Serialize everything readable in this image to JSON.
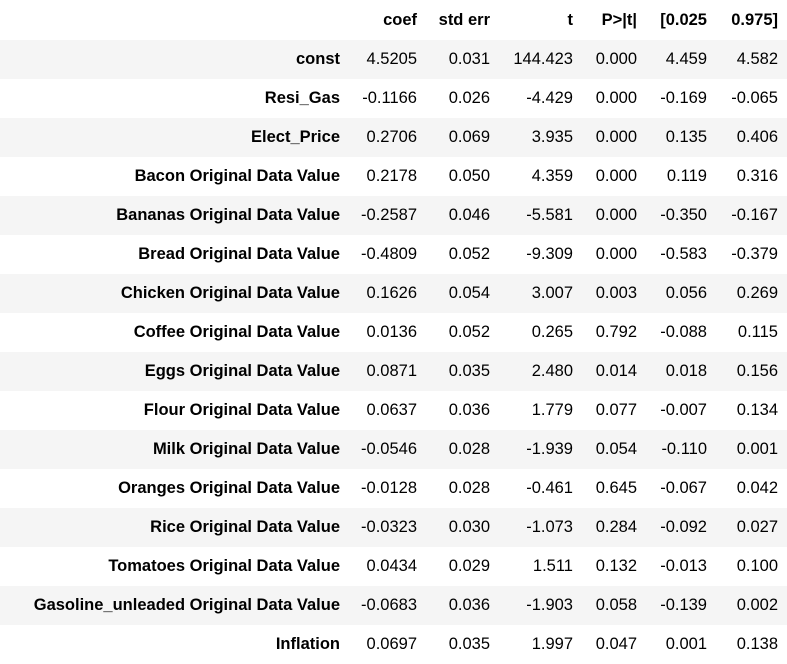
{
  "columns": [
    "",
    "coef",
    "std err",
    "t",
    "P>|t|",
    "[0.025",
    "0.975]"
  ],
  "rows": [
    {
      "name": "const",
      "values": [
        "4.5205",
        "0.031",
        "144.423",
        "0.000",
        "4.459",
        "4.582"
      ]
    },
    {
      "name": "Resi_Gas",
      "values": [
        "-0.1166",
        "0.026",
        "-4.429",
        "0.000",
        "-0.169",
        "-0.065"
      ]
    },
    {
      "name": "Elect_Price",
      "values": [
        "0.2706",
        "0.069",
        "3.935",
        "0.000",
        "0.135",
        "0.406"
      ]
    },
    {
      "name": "Bacon Original Data Value",
      "values": [
        "0.2178",
        "0.050",
        "4.359",
        "0.000",
        "0.119",
        "0.316"
      ]
    },
    {
      "name": "Bananas Original Data Value",
      "values": [
        "-0.2587",
        "0.046",
        "-5.581",
        "0.000",
        "-0.350",
        "-0.167"
      ]
    },
    {
      "name": "Bread Original Data Value",
      "values": [
        "-0.4809",
        "0.052",
        "-9.309",
        "0.000",
        "-0.583",
        "-0.379"
      ]
    },
    {
      "name": "Chicken Original Data Value",
      "values": [
        "0.1626",
        "0.054",
        "3.007",
        "0.003",
        "0.056",
        "0.269"
      ]
    },
    {
      "name": "Coffee Original Data Value",
      "values": [
        "0.0136",
        "0.052",
        "0.265",
        "0.792",
        "-0.088",
        "0.115"
      ]
    },
    {
      "name": "Eggs Original Data Value",
      "values": [
        "0.0871",
        "0.035",
        "2.480",
        "0.014",
        "0.018",
        "0.156"
      ]
    },
    {
      "name": "Flour Original Data Value",
      "values": [
        "0.0637",
        "0.036",
        "1.779",
        "0.077",
        "-0.007",
        "0.134"
      ]
    },
    {
      "name": "Milk Original Data Value",
      "values": [
        "-0.0546",
        "0.028",
        "-1.939",
        "0.054",
        "-0.110",
        "0.001"
      ]
    },
    {
      "name": "Oranges Original Data Value",
      "values": [
        "-0.0128",
        "0.028",
        "-0.461",
        "0.645",
        "-0.067",
        "0.042"
      ]
    },
    {
      "name": "Rice Original Data Value",
      "values": [
        "-0.0323",
        "0.030",
        "-1.073",
        "0.284",
        "-0.092",
        "0.027"
      ]
    },
    {
      "name": "Tomatoes Original Data Value",
      "values": [
        "0.0434",
        "0.029",
        "1.511",
        "0.132",
        "-0.013",
        "0.100"
      ]
    },
    {
      "name": "Gasoline_unleaded Original Data Value",
      "values": [
        "-0.0683",
        "0.036",
        "-1.903",
        "0.058",
        "-0.139",
        "0.002"
      ]
    },
    {
      "name": "Inflation",
      "values": [
        "0.0697",
        "0.035",
        "1.997",
        "0.047",
        "0.001",
        "0.138"
      ]
    }
  ]
}
